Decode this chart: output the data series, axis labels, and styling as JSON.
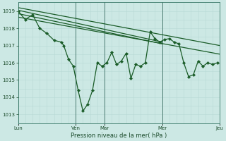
{
  "bg_color": "#cce8e4",
  "line_color": "#1a5c28",
  "xlabel": "Pression niveau de la mer( hPa )",
  "ylim": [
    1012.5,
    1019.5
  ],
  "xlim": [
    0,
    84
  ],
  "yticks": [
    1013,
    1014,
    1015,
    1016,
    1017,
    1018,
    1019
  ],
  "day_positions": [
    0,
    24,
    36,
    60,
    84
  ],
  "day_labels": [
    "Lun",
    "Ven",
    "Mar",
    "Mer",
    "Jeu"
  ],
  "main_x": [
    0,
    3,
    6,
    9,
    12,
    15,
    18,
    19,
    21,
    23,
    25,
    27,
    29,
    31,
    33,
    35,
    37,
    39,
    41,
    43,
    45,
    47,
    49,
    51,
    53,
    55,
    57,
    59,
    61,
    63,
    65,
    67,
    69,
    71,
    73,
    75,
    77,
    79,
    81,
    83
  ],
  "main_y": [
    1019.0,
    1018.5,
    1018.8,
    1018.0,
    1017.7,
    1017.3,
    1017.2,
    1017.0,
    1016.2,
    1015.8,
    1014.4,
    1013.2,
    1013.6,
    1014.4,
    1016.0,
    1015.8,
    1016.0,
    1016.6,
    1015.9,
    1016.1,
    1016.55,
    1015.1,
    1015.9,
    1015.8,
    1016.0,
    1017.8,
    1017.4,
    1017.2,
    1017.35,
    1017.4,
    1017.2,
    1017.1,
    1016.0,
    1015.2,
    1015.3,
    1016.1,
    1015.8,
    1016.0,
    1015.9,
    1016.0
  ],
  "trend1_x": [
    0,
    84
  ],
  "trend1_y": [
    1019.2,
    1017.0
  ],
  "trend2_x": [
    0,
    60
  ],
  "trend2_y": [
    1019.05,
    1017.2
  ],
  "trend3_x": [
    0,
    60
  ],
  "trend3_y": [
    1018.85,
    1017.1
  ],
  "trend4_x": [
    0,
    84
  ],
  "trend4_y": [
    1018.65,
    1016.5
  ]
}
